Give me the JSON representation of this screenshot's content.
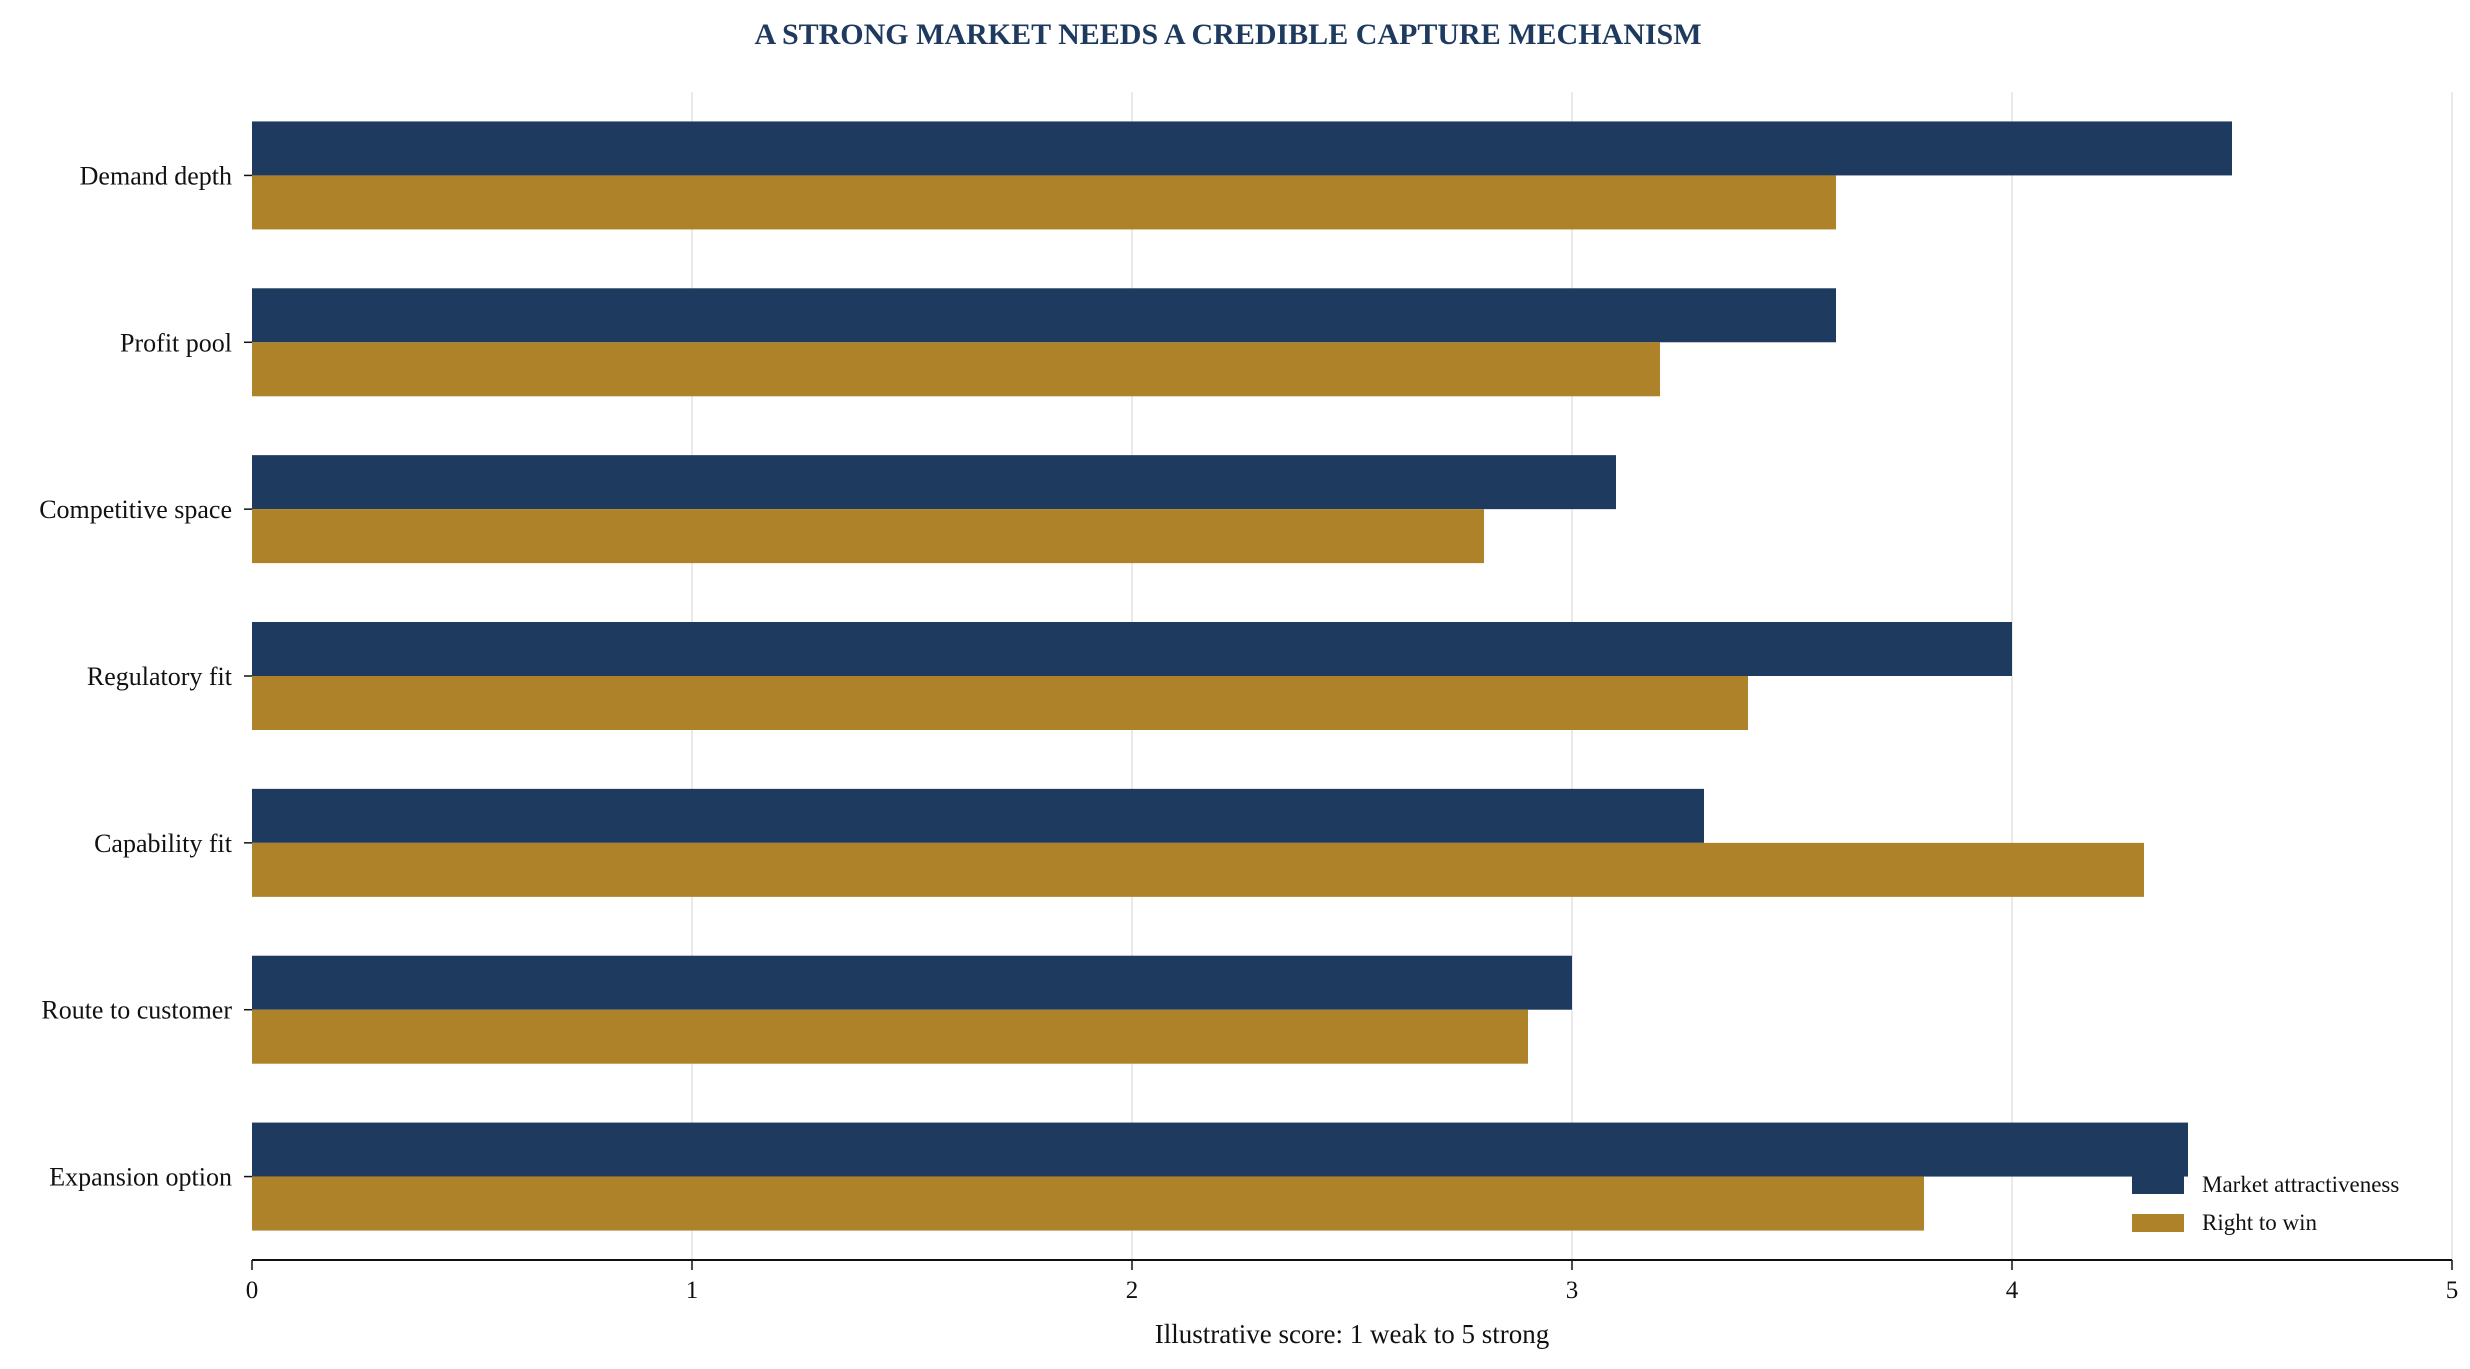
{
  "chart_data": {
    "type": "bar",
    "orientation": "horizontal",
    "title": "A STRONG MARKET NEEDS A CREDIBLE CAPTURE MECHANISM",
    "xlabel": "Illustrative score: 1 weak to 5 strong",
    "ylabel": "",
    "xlim": [
      0,
      5
    ],
    "x_ticks": [
      0,
      1,
      2,
      3,
      4,
      5
    ],
    "grid": "vertical",
    "legend_position": "bottom-right",
    "categories": [
      "Demand depth",
      "Profit pool",
      "Competitive space",
      "Regulatory fit",
      "Capability fit",
      "Route to customer",
      "Expansion option"
    ],
    "series": [
      {
        "name": "Market attractiveness",
        "color": "#1f3a5f",
        "values": [
          4.5,
          3.6,
          3.1,
          4.0,
          3.3,
          3.0,
          4.4
        ]
      },
      {
        "name": "Right to win",
        "color": "#ad8228",
        "values": [
          3.6,
          3.2,
          2.8,
          3.4,
          4.3,
          2.9,
          3.8
        ]
      }
    ],
    "title_color": "#1f3a5f"
  }
}
